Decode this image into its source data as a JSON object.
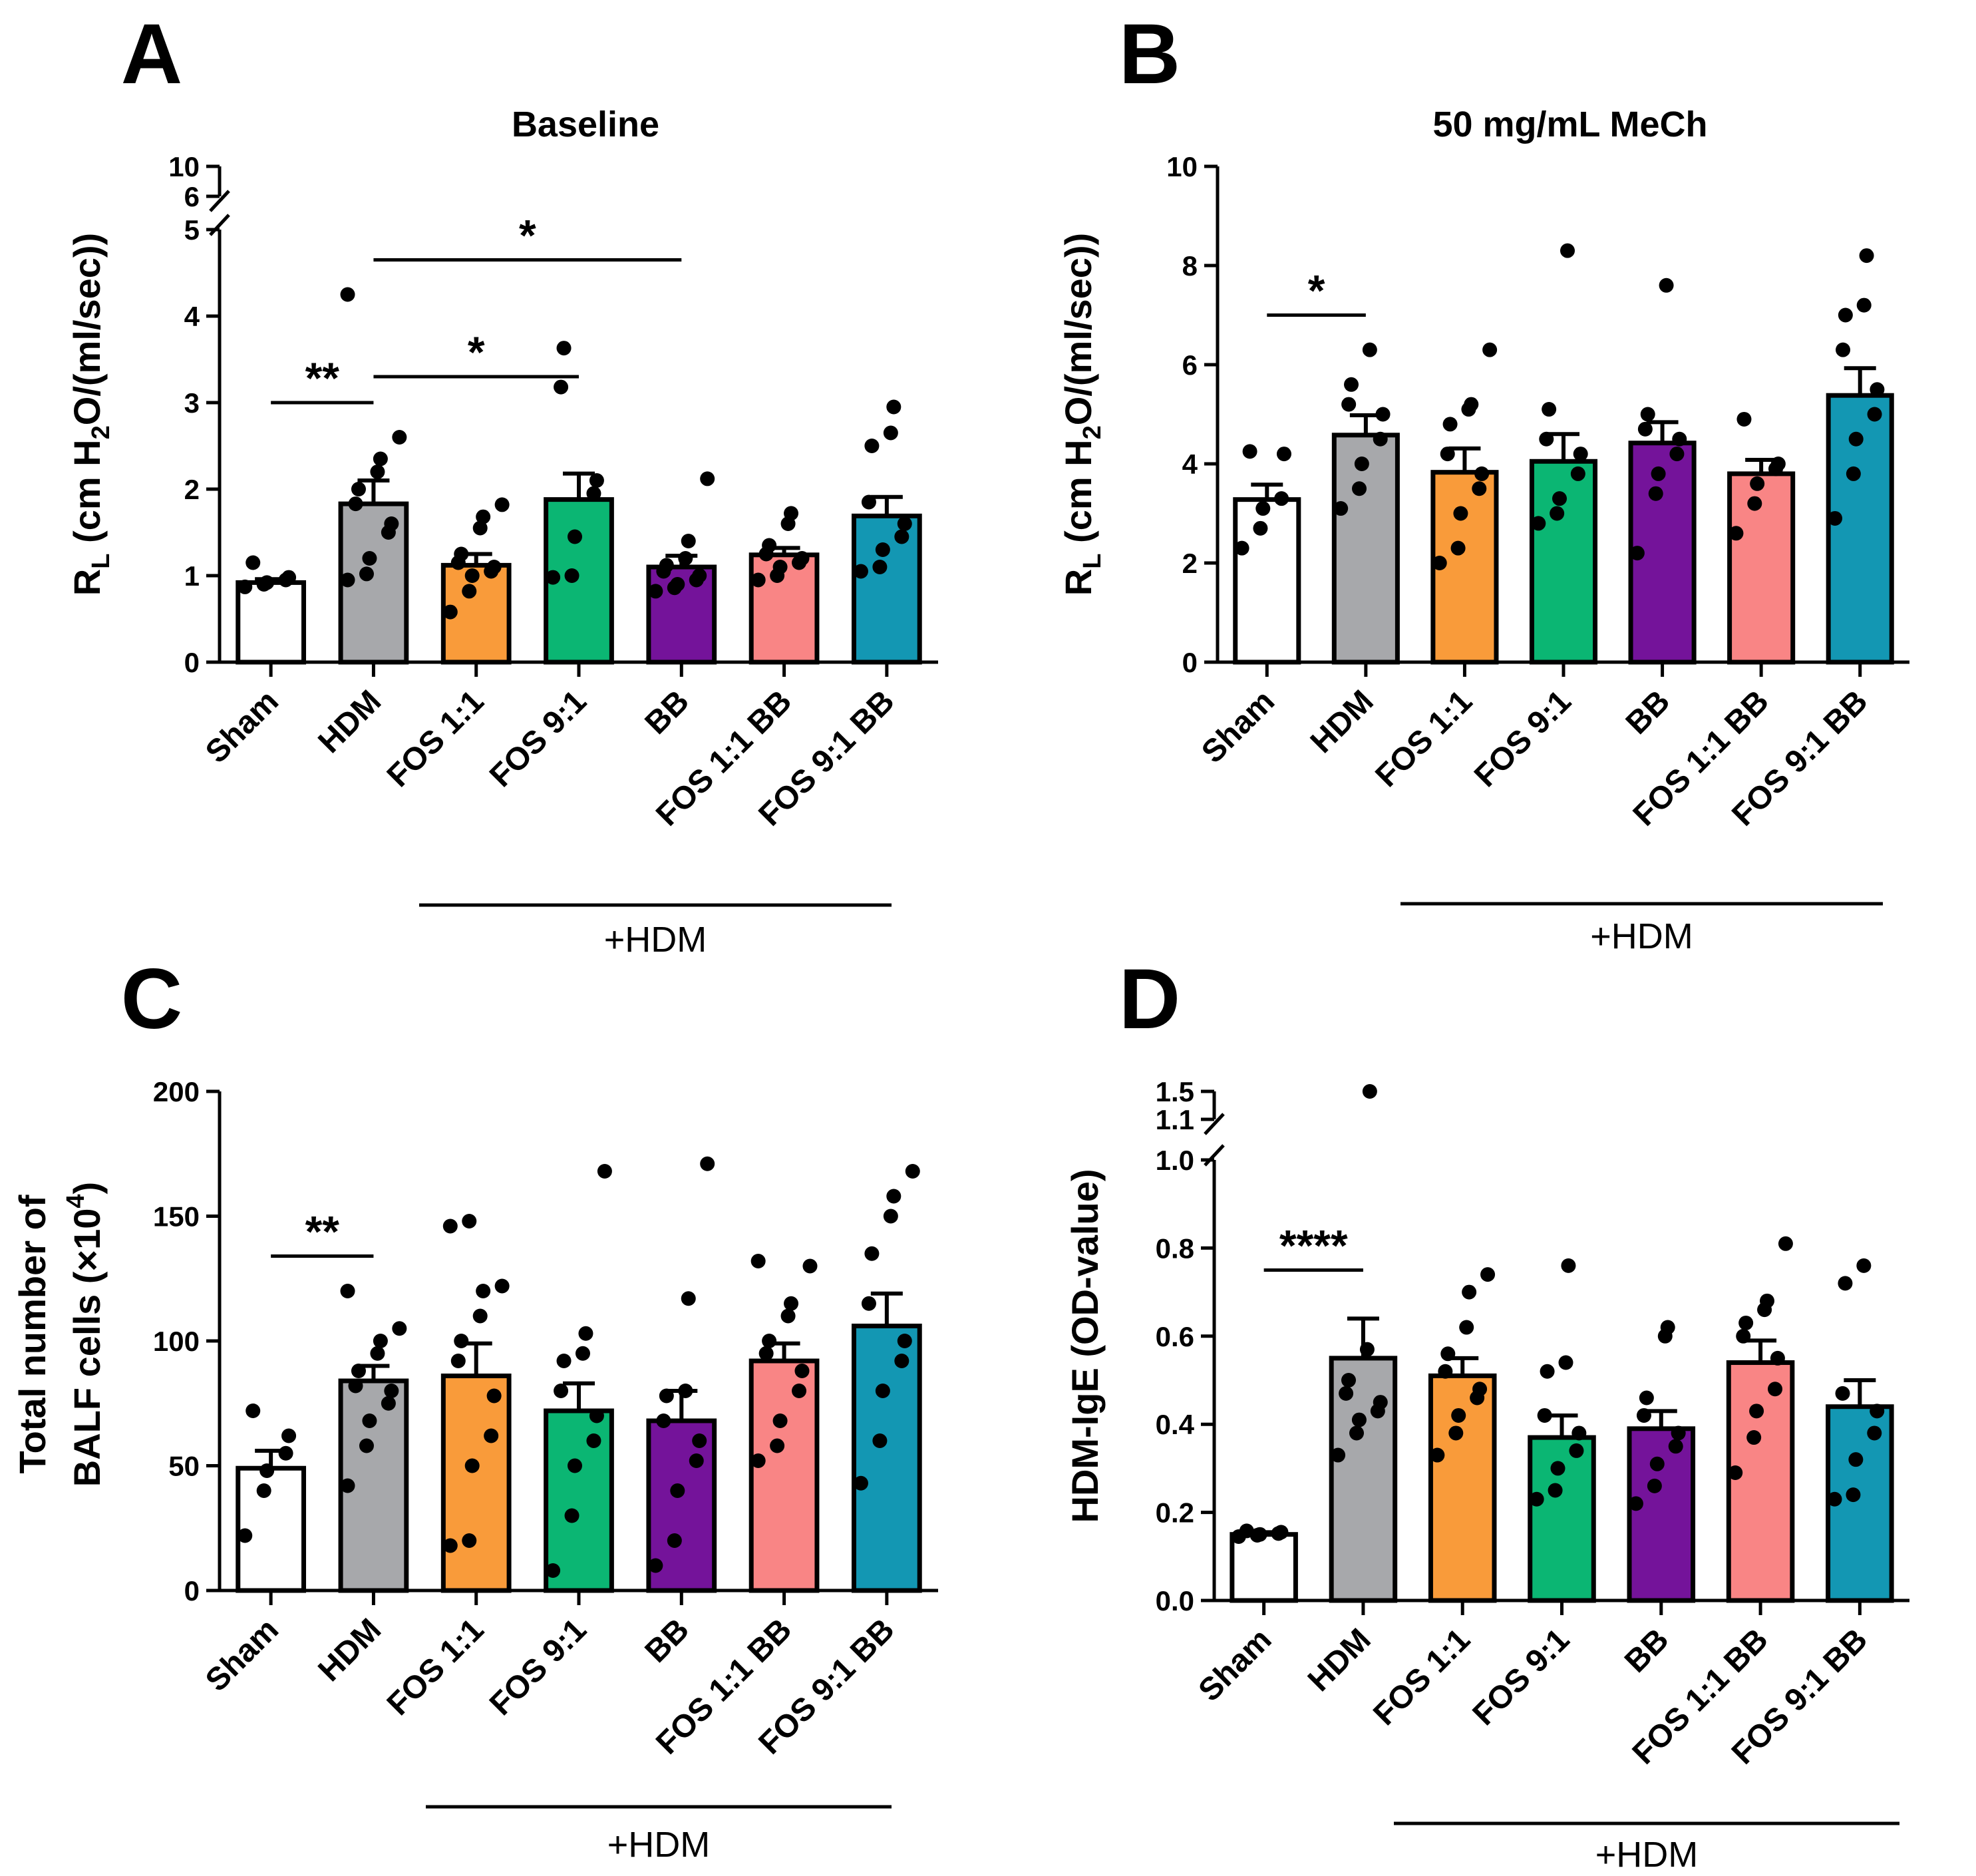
{
  "chart_data": [
    {
      "panel": "A",
      "type": "bar",
      "title": "Baseline",
      "ylabel": "R_L (cm H2O/(ml/sec))",
      "ylabel_parts": {
        "main": "R",
        "sub": "L",
        "rest1": " (cm H",
        "sub2": "2",
        "rest2": "O/(ml/sec))"
      },
      "ylim": [
        0,
        10
      ],
      "axis_break": {
        "from": 5,
        "to": 6
      },
      "yticks": [
        0,
        1,
        2,
        3,
        4,
        5,
        6,
        10
      ],
      "categories": [
        "Sham",
        "HDM",
        "FOS 1:1",
        "FOS 9:1",
        "BB",
        "FOS 1:1 BB",
        "FOS 9:1 BB"
      ],
      "colors": [
        "#ffffff",
        "#a7a8ab",
        "#f99b3a",
        "#0bb673",
        "#74139a",
        "#f98585",
        "#1397b3"
      ],
      "values": [
        0.92,
        1.83,
        1.12,
        1.88,
        1.1,
        1.24,
        1.69
      ],
      "sem": [
        0.04,
        0.27,
        0.13,
        0.3,
        0.13,
        0.08,
        0.22
      ],
      "points": [
        [
          0.87,
          0.9,
          0.92,
          0.95,
          0.98,
          1.15
        ],
        [
          0.95,
          1.02,
          1.2,
          1.5,
          1.6,
          1.83,
          2.0,
          2.2,
          2.35,
          2.6,
          4.25
        ],
        [
          0.58,
          0.82,
          1.0,
          1.05,
          1.1,
          1.15,
          1.25,
          1.55,
          1.68,
          1.82
        ],
        [
          0.98,
          1.0,
          1.45,
          1.95,
          2.1,
          3.18,
          3.63
        ],
        [
          0.82,
          0.86,
          0.9,
          0.95,
          1.0,
          1.05,
          1.12,
          1.2,
          1.4,
          2.12
        ],
        [
          0.95,
          1.0,
          1.1,
          1.15,
          1.2,
          1.25,
          1.35,
          1.6,
          1.72
        ],
        [
          1.05,
          1.1,
          1.3,
          1.45,
          1.6,
          1.85,
          2.5,
          2.65,
          2.95
        ]
      ],
      "significance": [
        {
          "from": 0,
          "to": 1,
          "y": 3.0,
          "label": "**"
        },
        {
          "from": 1,
          "to": 3,
          "y": 3.3,
          "label": "*"
        },
        {
          "from": 1,
          "to": 4,
          "y": 4.65,
          "label": "*"
        }
      ],
      "group_label": "+HDM"
    },
    {
      "panel": "B",
      "type": "bar",
      "title": "50 mg/mL MeCh",
      "ylabel": "R_L (cm H2O/(ml/sec))",
      "ylabel_parts": {
        "main": "R",
        "sub": "L",
        "rest1": " (cm H",
        "sub2": "2",
        "rest2": "O/(ml/sec))"
      },
      "ylim": [
        0,
        10
      ],
      "yticks": [
        0,
        2,
        4,
        6,
        8,
        10
      ],
      "categories": [
        "Sham",
        "HDM",
        "FOS 1:1",
        "FOS 9:1",
        "BB",
        "FOS 1:1 BB",
        "FOS 9:1 BB"
      ],
      "colors": [
        "#ffffff",
        "#a7a8ab",
        "#f99b3a",
        "#0bb673",
        "#74139a",
        "#f98585",
        "#1397b3"
      ],
      "values": [
        3.28,
        4.58,
        3.83,
        4.05,
        4.42,
        3.8,
        5.38
      ],
      "sem": [
        0.3,
        0.4,
        0.48,
        0.55,
        0.42,
        0.28,
        0.55
      ],
      "points": [
        [
          2.3,
          2.7,
          3.1,
          3.3,
          4.2,
          4.25
        ],
        [
          3.1,
          3.5,
          4.0,
          4.5,
          5.0,
          5.2,
          5.6,
          6.3
        ],
        [
          2.0,
          2.3,
          3.0,
          3.5,
          3.8,
          4.2,
          4.8,
          5.1,
          5.2,
          6.3
        ],
        [
          2.8,
          3.0,
          3.3,
          3.8,
          4.2,
          4.5,
          5.1,
          8.3
        ],
        [
          2.2,
          3.4,
          3.8,
          4.2,
          4.5,
          4.7,
          5.0,
          7.6
        ],
        [
          2.6,
          3.2,
          3.6,
          3.9,
          4.0,
          4.9
        ],
        [
          2.9,
          3.8,
          4.5,
          5.0,
          5.5,
          6.3,
          7.0,
          7.2,
          8.2
        ]
      ],
      "significance": [
        {
          "from": 0,
          "to": 1,
          "y": 7.0,
          "label": "*"
        }
      ],
      "group_label": "+HDM"
    },
    {
      "panel": "C",
      "type": "bar",
      "title": "",
      "ylabel": "Total number of BALF cells (×10^4)",
      "ylabel_lines": [
        "Total number of",
        "BALF cells (×10",
        "4",
        ")"
      ],
      "ylim": [
        0,
        200
      ],
      "yticks": [
        0,
        50,
        100,
        150,
        200
      ],
      "categories": [
        "Sham",
        "HDM",
        "FOS 1:1",
        "FOS 9:1",
        "BB",
        "FOS 1:1 BB",
        "FOS 9:1 BB"
      ],
      "colors": [
        "#ffffff",
        "#a7a8ab",
        "#f99b3a",
        "#0bb673",
        "#74139a",
        "#f98585",
        "#1397b3"
      ],
      "values": [
        49,
        84,
        86,
        72,
        68,
        92,
        106
      ],
      "sem": [
        7,
        6,
        13,
        11,
        12,
        7,
        13
      ],
      "points": [
        [
          22,
          40,
          48,
          55,
          62,
          72
        ],
        [
          42,
          58,
          68,
          75,
          80,
          82,
          88,
          95,
          100,
          105,
          120
        ],
        [
          18,
          20,
          50,
          62,
          78,
          92,
          100,
          110,
          120,
          122,
          146,
          148
        ],
        [
          8,
          30,
          50,
          60,
          70,
          80,
          92,
          95,
          103,
          168
        ],
        [
          10,
          20,
          40,
          52,
          60,
          68,
          78,
          80,
          117,
          171
        ],
        [
          52,
          58,
          68,
          80,
          88,
          95,
          100,
          110,
          115,
          130,
          132
        ],
        [
          43,
          60,
          80,
          92,
          100,
          115,
          135,
          150,
          158,
          168
        ]
      ],
      "significance": [
        {
          "from": 0,
          "to": 1,
          "y": 134,
          "label": "**"
        }
      ],
      "group_label": "+HDM"
    },
    {
      "panel": "D",
      "type": "bar",
      "title": "",
      "ylabel": "HDM-IgE (OD-value)",
      "ylim": [
        0,
        1.5
      ],
      "axis_break": {
        "from": 1.0,
        "to": 1.1
      },
      "yticks": [
        0.0,
        0.2,
        0.4,
        0.6,
        0.8,
        1.0,
        1.1,
        1.5
      ],
      "ytick_labels": [
        "0.0",
        "0.2",
        "0.4",
        "0.6",
        "0.8",
        "1.0",
        "1.1",
        "1.5"
      ],
      "categories": [
        "Sham",
        "HDM",
        "FOS 1:1",
        "FOS 9:1",
        "BB",
        "FOS 1:1 BB",
        "FOS 9:1 BB"
      ],
      "colors": [
        "#ffffff",
        "#a7a8ab",
        "#f99b3a",
        "#0bb673",
        "#74139a",
        "#f98585",
        "#1397b3"
      ],
      "values": [
        0.15,
        0.55,
        0.51,
        0.37,
        0.39,
        0.54,
        0.44
      ],
      "sem": [
        0.005,
        0.09,
        0.04,
        0.05,
        0.04,
        0.05,
        0.06
      ],
      "points": [
        [
          0.145,
          0.148,
          0.15,
          0.152,
          0.155,
          0.158
        ],
        [
          0.33,
          0.38,
          0.41,
          0.43,
          0.45,
          0.47,
          0.5,
          0.57,
          1.5
        ],
        [
          0.33,
          0.38,
          0.42,
          0.46,
          0.48,
          0.52,
          0.56,
          0.62,
          0.7,
          0.74
        ],
        [
          0.23,
          0.25,
          0.3,
          0.34,
          0.38,
          0.42,
          0.52,
          0.54,
          0.76
        ],
        [
          0.22,
          0.26,
          0.31,
          0.35,
          0.38,
          0.42,
          0.46,
          0.6,
          0.62
        ],
        [
          0.29,
          0.37,
          0.43,
          0.48,
          0.55,
          0.6,
          0.63,
          0.66,
          0.68,
          0.81
        ],
        [
          0.23,
          0.24,
          0.32,
          0.38,
          0.43,
          0.47,
          0.72,
          0.76
        ]
      ],
      "significance": [
        {
          "from": 0,
          "to": 1,
          "y": 0.75,
          "label": "****"
        }
      ],
      "group_label": "+HDM"
    }
  ]
}
